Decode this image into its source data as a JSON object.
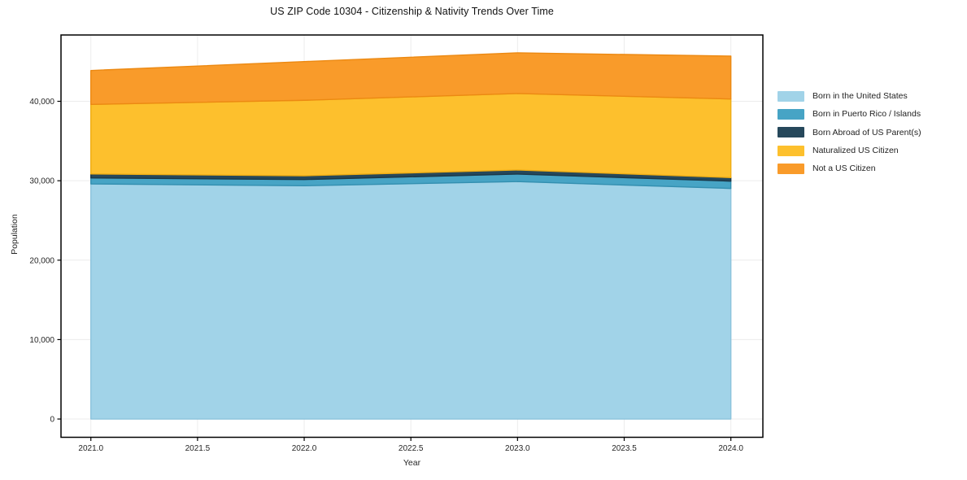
{
  "title": "US ZIP Code 10304 - Citizenship & Nativity Trends Over Time",
  "chart_data": {
    "type": "area",
    "stacked": true,
    "title": "US ZIP Code 10304 - Citizenship & Nativity Trends Over Time",
    "xlabel": "Year",
    "ylabel": "Population",
    "x": [
      2021,
      2022,
      2023,
      2024
    ],
    "series": [
      {
        "name": "Born in the United States",
        "color": "#A1D3E8",
        "edge": "#8CC3DC",
        "values": [
          29600,
          29370,
          29890,
          29030
        ]
      },
      {
        "name": "Born in Puerto Rico / Islands",
        "color": "#47A4C5",
        "edge": "#338FB0",
        "values": [
          750,
          780,
          950,
          920
        ]
      },
      {
        "name": "Born Abroad of US Parent(s)",
        "color": "#26485B",
        "edge": "#1B3848",
        "values": [
          500,
          480,
          510,
          450
        ]
      },
      {
        "name": "Naturalized US Citizen",
        "color": "#FDC02D",
        "edge": "#EFAD14",
        "values": [
          8760,
          9500,
          9630,
          9890
        ]
      },
      {
        "name": "Not a US Citizen",
        "color": "#F99B2A",
        "edge": "#EC8912",
        "values": [
          4270,
          4870,
          5120,
          5400
        ]
      }
    ],
    "stack_totals": [
      43880,
      45000,
      46100,
      45690
    ],
    "xticks": [
      2021.0,
      2021.5,
      2022.0,
      2022.5,
      2023.0,
      2023.5,
      2024.0
    ],
    "xtick_labels": [
      "2021.0",
      "2021.5",
      "2022.0",
      "2022.5",
      "2023.0",
      "2023.5",
      "2024.0"
    ],
    "yticks": [
      0,
      10000,
      20000,
      30000,
      40000
    ],
    "ytick_labels": [
      "0",
      "10,000",
      "20,000",
      "30,000",
      "40,000"
    ],
    "xlim": [
      2020.86,
      2024.15
    ],
    "ylim": [
      -2300,
      48350
    ],
    "grid": true,
    "grid_color": "#ececec",
    "spine_color": "#000000",
    "tick_label_color": "#262626",
    "legend_position": "right-outside"
  }
}
